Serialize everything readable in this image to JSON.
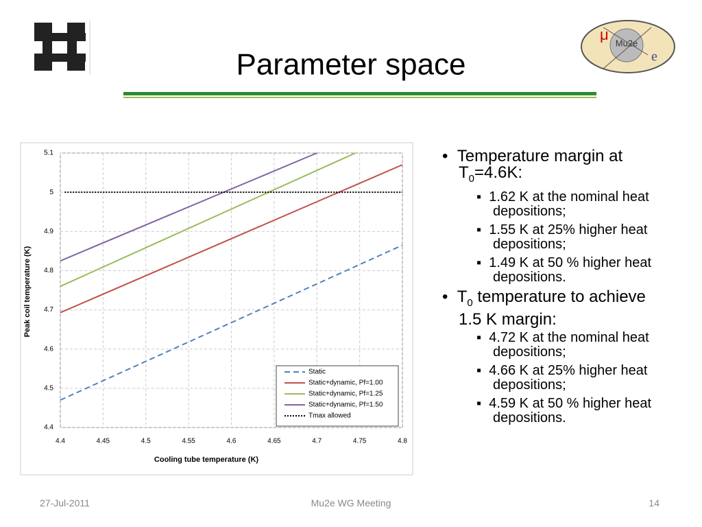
{
  "header": {
    "title": "Parameter space",
    "logo_text": "Mu2e",
    "logo_mu": "μ",
    "logo_e": "e"
  },
  "chart_data": {
    "type": "line",
    "x_label": "Cooling tube temperature (K)",
    "y_label": "Peak coil temperature (K)",
    "xlim": [
      4.4,
      4.8
    ],
    "ylim": [
      4.4,
      5.1
    ],
    "xticks": [
      4.4,
      4.45,
      4.5,
      4.55,
      4.6,
      4.65,
      4.7,
      4.75,
      4.8
    ],
    "yticks": [
      4.4,
      4.5,
      4.6,
      4.7,
      4.8,
      4.9,
      5,
      5.1
    ],
    "grid": true,
    "series": [
      {
        "name": "Static",
        "color": "#4f81bd",
        "dash": "dashed",
        "x": [
          4.4,
          4.8
        ],
        "values": [
          4.47,
          4.865
        ]
      },
      {
        "name": "Static+dynamic, Pf=1.00",
        "color": "#c0504d",
        "dash": "solid",
        "x": [
          4.4,
          4.8
        ],
        "values": [
          4.693,
          5.07
        ]
      },
      {
        "name": "Static+dynamic, Pf=1.25",
        "color": "#9bbb59",
        "dash": "solid",
        "x": [
          4.4,
          4.745
        ],
        "values": [
          4.76,
          5.1
        ]
      },
      {
        "name": "Static+dynamic, Pf=1.50",
        "color": "#8064a2",
        "dash": "solid",
        "x": [
          4.4,
          4.7
        ],
        "values": [
          4.825,
          5.1
        ]
      },
      {
        "name": "Tmax allowed",
        "color": "#000000",
        "dash": "dotted",
        "x": [
          4.405,
          4.8
        ],
        "values": [
          5,
          5
        ]
      }
    ]
  },
  "bullets": [
    {
      "parts": [
        "Temperature margin at T",
        "0",
        "=4.6K:"
      ],
      "subitems": [
        "1.62 K at the nominal heat depositions;",
        "1.55 K at 25% higher heat depositions;",
        "1.49 K at 50 % higher heat depositions."
      ]
    },
    {
      "parts": [
        "T",
        "0",
        " temperature to achieve 1.5 K margin:"
      ],
      "subitems": [
        "4.72 K at the nominal heat depositions;",
        "4.66 K at 25% higher heat depositions;",
        "4.59 K at 50 % higher heat depositions."
      ]
    }
  ],
  "footer": {
    "date": "27-Jul-2011",
    "meeting": "Mu2e WG Meeting",
    "page": "14"
  }
}
